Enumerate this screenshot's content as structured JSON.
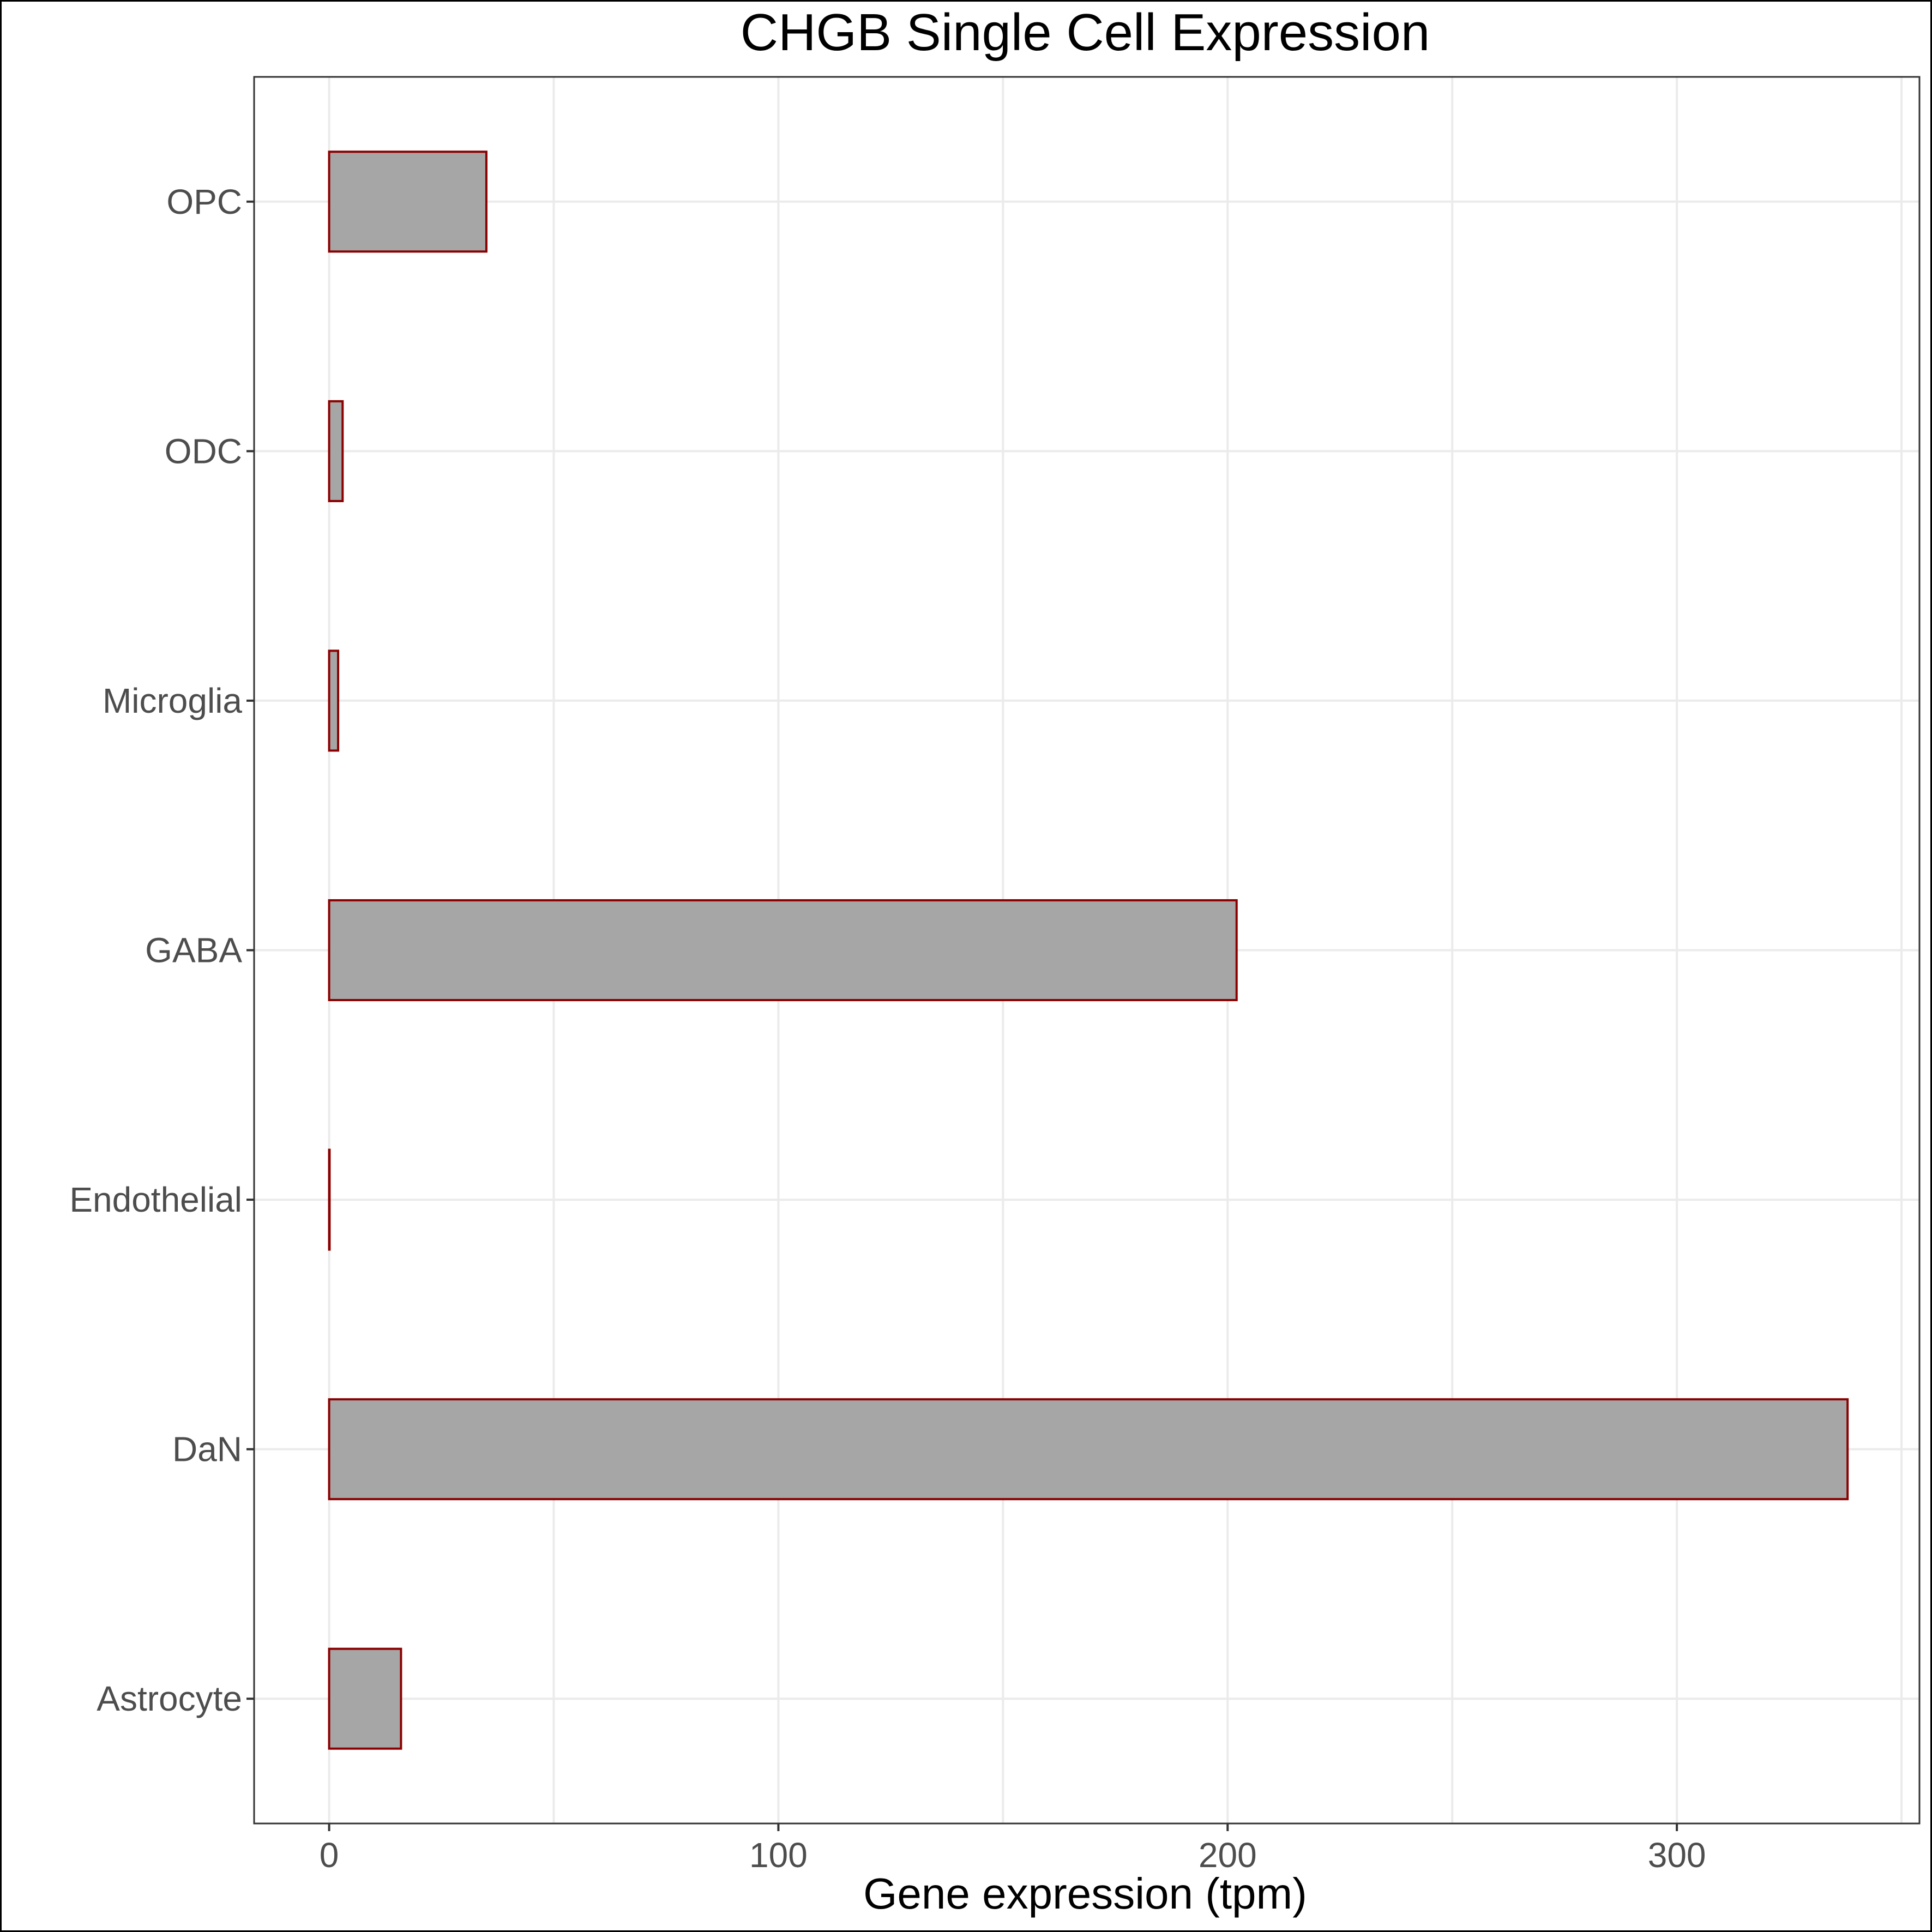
{
  "chart_data": {
    "type": "bar",
    "orientation": "horizontal",
    "title": "CHGB Single Cell Expression",
    "xlabel": "Gene expression (tpm)",
    "ylabel": "",
    "categories": [
      "Astrocyte",
      "DaN",
      "Endothelial",
      "GABA",
      "Microglia",
      "ODC",
      "OPC"
    ],
    "values": [
      16,
      338,
      0.1,
      202,
      2,
      3,
      35
    ],
    "xlim": [
      -16.7,
      354
    ],
    "xticks": [
      0,
      100,
      200,
      300
    ],
    "xtick_labels": [
      "0",
      "100",
      "200",
      "300"
    ],
    "grid": true,
    "legend": "none",
    "colors": {
      "bar_fill": "#a6a6a6",
      "bar_outline": "#8b0000"
    }
  }
}
